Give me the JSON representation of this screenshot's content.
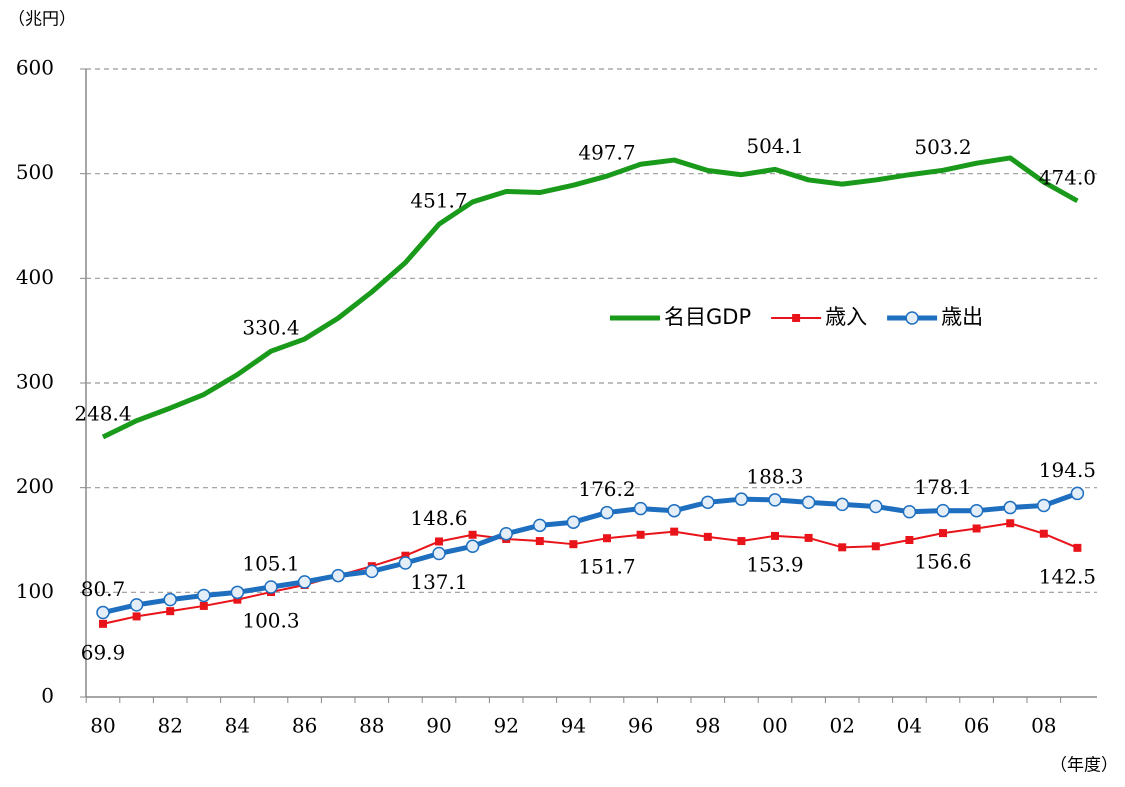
{
  "chart_data": {
    "type": "line",
    "y_unit": "（兆円）",
    "x_unit": "（年度）",
    "categories": [
      "80",
      null,
      "82",
      null,
      "84",
      null,
      "86",
      null,
      "88",
      null,
      "90",
      null,
      "92",
      null,
      "94",
      null,
      "96",
      null,
      "98",
      null,
      "00",
      null,
      "02",
      null,
      "04",
      null,
      "06",
      null,
      "08",
      null
    ],
    "ylim": [
      0,
      600
    ],
    "yticks": [
      0,
      100,
      200,
      300,
      400,
      500,
      600
    ],
    "grid": true,
    "series": [
      {
        "name": "名目GDP",
        "color": "#1a9a1a",
        "marker": "none",
        "values": [
          248.4,
          264,
          276,
          289,
          308,
          330.4,
          342,
          362,
          387,
          415,
          451.7,
          473,
          483,
          482,
          489,
          497.7,
          509,
          513,
          503,
          499,
          504.1,
          494,
          490,
          494,
          499,
          503.2,
          510,
          515,
          492,
          474.0
        ],
        "value_labels": [
          "248.4",
          null,
          null,
          null,
          null,
          "330.4",
          null,
          null,
          null,
          null,
          "451.7",
          null,
          null,
          null,
          null,
          "497.7",
          null,
          null,
          null,
          null,
          "504.1",
          null,
          null,
          null,
          null,
          "503.2",
          null,
          null,
          null,
          "474.0"
        ]
      },
      {
        "name": "歳入",
        "color": "#e8141a",
        "marker": "square",
        "values": [
          69.9,
          77,
          82,
          87,
          93,
          100.3,
          107,
          116,
          125,
          135,
          148.6,
          155,
          151,
          149,
          146,
          151.7,
          155,
          158,
          153,
          149,
          153.9,
          152,
          143,
          144,
          150,
          156.6,
          161,
          166,
          156,
          142.5
        ],
        "value_labels": [
          "69.9",
          null,
          null,
          null,
          null,
          "100.3",
          null,
          null,
          null,
          null,
          "148.6",
          null,
          null,
          null,
          null,
          "151.7",
          null,
          null,
          null,
          null,
          "153.9",
          null,
          null,
          null,
          null,
          "156.6",
          null,
          null,
          null,
          "142.5"
        ]
      },
      {
        "name": "歳出",
        "color": "#1e6fbf",
        "marker": "circle",
        "values": [
          80.7,
          88,
          93,
          97,
          100,
          105.1,
          110,
          116,
          120,
          128,
          137.1,
          144,
          156,
          164,
          167,
          176.2,
          180,
          178,
          186,
          189,
          188.3,
          186,
          184,
          182,
          177,
          178.1,
          178,
          181,
          183,
          194.5
        ],
        "value_labels": [
          "80.7",
          null,
          null,
          null,
          null,
          "105.1",
          null,
          null,
          null,
          null,
          "137.1",
          null,
          null,
          null,
          null,
          "176.2",
          null,
          null,
          null,
          null,
          "188.3",
          null,
          null,
          null,
          null,
          "178.1",
          null,
          null,
          null,
          "194.5"
        ]
      }
    ]
  }
}
